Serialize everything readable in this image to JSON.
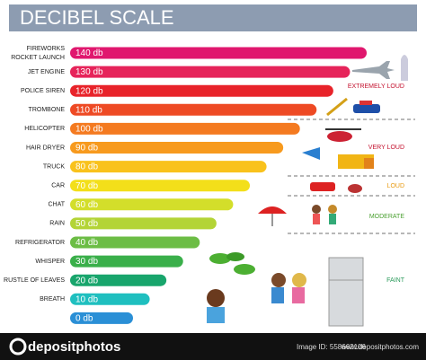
{
  "chart_data": {
    "type": "bar",
    "orientation": "horizontal",
    "title": "DECIBEL SCALE",
    "categories": [
      "FIREWORKS ROCKET LAUNCH",
      "JET ENGINE",
      "POLICE SIREN",
      "TROMBONE",
      "HELICOPTER",
      "HAIR DRYER",
      "TRUCK",
      "CAR",
      "CHAT",
      "RAIN",
      "REFRIGERATOR",
      "WHISPER",
      "RUSTLE OF LEAVES",
      "BREATH",
      null
    ],
    "values": [
      140,
      130,
      120,
      110,
      100,
      90,
      80,
      70,
      60,
      50,
      40,
      30,
      20,
      10,
      0
    ],
    "value_labels": [
      "140 db",
      "130 db",
      "120 db",
      "110 db",
      "100 db",
      "90 db",
      "80 db",
      "70 db",
      "60 db",
      "50 db",
      "40 db",
      "30 db",
      "20 db",
      "10 db",
      "0 db"
    ],
    "colors": [
      "#e0176e",
      "#e6245a",
      "#e8232a",
      "#ee4a24",
      "#f47a20",
      "#f79a1e",
      "#f9c21c",
      "#f3df1a",
      "#d3de2a",
      "#b3d436",
      "#6cbd45",
      "#3aaf4a",
      "#18a56c",
      "#1fbfbf",
      "#2a8fd6"
    ],
    "zones": [
      "EXTREMELY LOUD",
      "VERY LOUD",
      "LOUD",
      "MODERATE",
      "FAINT"
    ]
  },
  "footer": {
    "brand": "depositphotos",
    "image_id": "Image ID: 558662106",
    "site": "www.depositphotos.com"
  }
}
